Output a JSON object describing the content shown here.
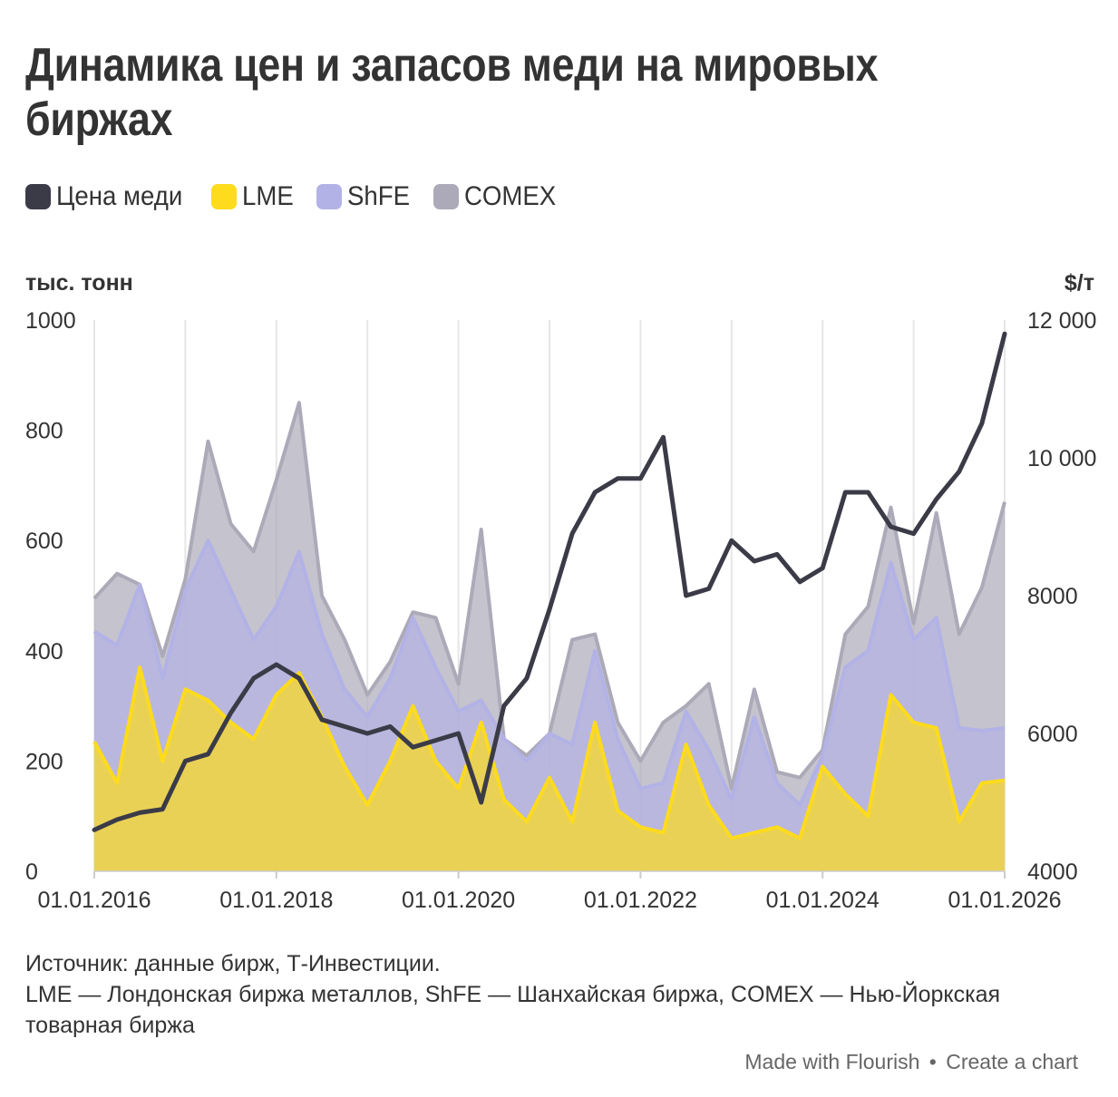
{
  "title": "Динамика цен и запасов меди на мировых биржах",
  "legend": [
    {
      "label": "Цена меди",
      "color": "#3b3b48"
    },
    {
      "label": "LME",
      "color": "#fedb1c"
    },
    {
      "label": "ShFE",
      "color": "#b3b2e6"
    },
    {
      "label": "COMEX",
      "color": "#acaab8"
    }
  ],
  "notes": {
    "source": "Источник: данные бирж, Т-Инвестиции.",
    "explain": "LME — Лондонская биржа металлов, ShFE — Шанхайская биржа, COMEX — Нью-Йоркская товарная биржа"
  },
  "footer": {
    "made": "Made with Flourish",
    "sep": "•",
    "create": "Create a chart"
  },
  "chart_data": {
    "type": "area",
    "stacking": "stacked areas (LME, ShFE, COMEX) on left axis; price line on right axis",
    "x": [
      2016.0,
      2016.25,
      2016.5,
      2016.75,
      2017.0,
      2017.25,
      2017.5,
      2017.75,
      2018.0,
      2018.25,
      2018.5,
      2018.75,
      2019.0,
      2019.25,
      2019.5,
      2019.75,
      2020.0,
      2020.25,
      2020.5,
      2020.75,
      2021.0,
      2021.25,
      2021.5,
      2021.75,
      2022.0,
      2022.25,
      2022.5,
      2022.75,
      2023.0,
      2023.25,
      2023.5,
      2023.75,
      2024.0,
      2024.25,
      2024.5,
      2024.75,
      2025.0,
      2025.25,
      2025.5,
      2025.75,
      2026.0
    ],
    "x_tick_labels": [
      "01.01.2016",
      "01.01.2018",
      "01.01.2020",
      "01.01.2022",
      "01.01.2024",
      "01.01.2026"
    ],
    "x_tick_values": [
      2016,
      2018,
      2020,
      2022,
      2024,
      2026
    ],
    "x_grid_values": [
      2016,
      2017,
      2018,
      2019,
      2020,
      2021,
      2022,
      2023,
      2024,
      2025,
      2026
    ],
    "left_axis": {
      "label": "тыс. тонн",
      "min": 0,
      "max": 1000,
      "ticks": [
        0,
        200,
        400,
        600,
        800,
        1000
      ],
      "tick_labels": [
        "0",
        "200",
        "400",
        "600",
        "800",
        "1000"
      ]
    },
    "right_axis": {
      "label": "$/т",
      "min": 4000,
      "max": 12000,
      "ticks": [
        4000,
        6000,
        8000,
        10000,
        12000
      ],
      "tick_labels": [
        "4000",
        "6000",
        "8000",
        "10 000",
        "12 000"
      ]
    },
    "series": [
      {
        "name": "LME",
        "axis": "left",
        "kind": "area",
        "color": "#fedb1c",
        "values": [
          235,
          160,
          370,
          200,
          330,
          310,
          270,
          240,
          320,
          360,
          280,
          190,
          120,
          200,
          300,
          200,
          150,
          270,
          130,
          90,
          170,
          90,
          270,
          110,
          80,
          70,
          230,
          120,
          60,
          70,
          80,
          60,
          190,
          140,
          100,
          320,
          270,
          260,
          90,
          160,
          165
        ]
      },
      {
        "name": "ShFE",
        "axis": "left",
        "kind": "area",
        "color": "#b3b2e6",
        "values": [
          200,
          250,
          150,
          150,
          180,
          290,
          240,
          180,
          160,
          220,
          150,
          140,
          160,
          150,
          160,
          170,
          140,
          40,
          110,
          110,
          80,
          140,
          130,
          130,
          70,
          90,
          60,
          100,
          70,
          210,
          80,
          60,
          20,
          230,
          300,
          240,
          150,
          200,
          170,
          95,
          95
        ]
      },
      {
        "name": "COMEX",
        "axis": "left",
        "kind": "area",
        "color": "#acaab8",
        "values": [
          60,
          130,
          0,
          40,
          20,
          180,
          120,
          160,
          230,
          270,
          70,
          90,
          40,
          30,
          10,
          90,
          50,
          310,
          0,
          10,
          0,
          190,
          30,
          30,
          50,
          110,
          10,
          120,
          20,
          50,
          20,
          50,
          10,
          60,
          80,
          100,
          30,
          190,
          170,
          260,
          410
        ]
      },
      {
        "name": "Цена меди",
        "axis": "right",
        "kind": "line",
        "color": "#3b3b48",
        "values": [
          4600,
          4750,
          4850,
          4900,
          5600,
          5700,
          6300,
          6800,
          7000,
          6800,
          6200,
          6100,
          6000,
          6100,
          5800,
          5900,
          6000,
          5000,
          6400,
          6800,
          7800,
          8900,
          9500,
          9700,
          9700,
          10300,
          8000,
          8100,
          8800,
          8500,
          8600,
          8200,
          8400,
          9500,
          9500,
          9000,
          8900,
          9400,
          9800,
          10500,
          11800
        ]
      }
    ]
  }
}
